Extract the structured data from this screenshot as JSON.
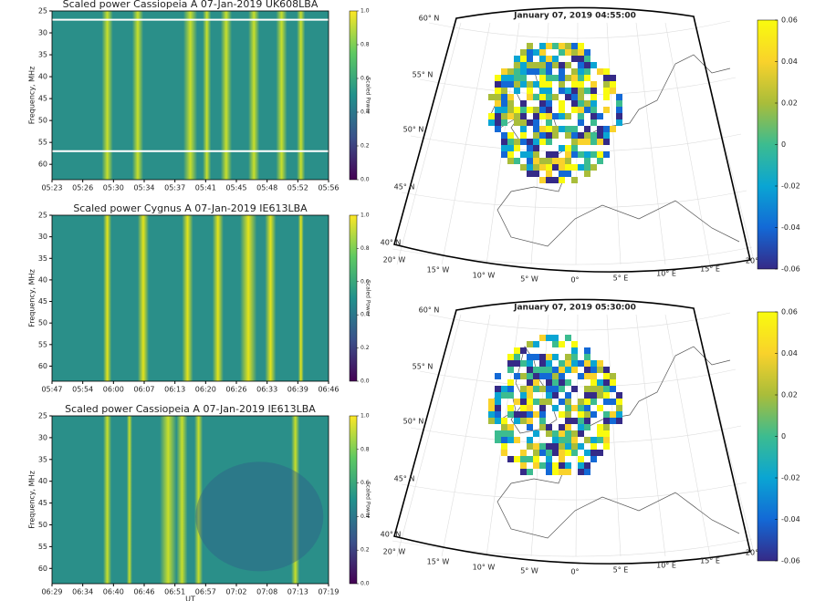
{
  "chart_data": [
    {
      "type": "spectrogram",
      "title": "Scaled power Cassiopeia A 07-Jan-2019 UK608LBA",
      "ylabel": "Frequency, MHz",
      "ylim": [
        25,
        63.5
      ],
      "yticks": [
        25,
        30,
        35,
        40,
        45,
        50,
        55,
        60
      ],
      "xticks": [
        "05:23",
        "05:26",
        "05:30",
        "05:34",
        "05:37",
        "05:41",
        "05:45",
        "05:48",
        "05:52",
        "05:56"
      ],
      "colorbar": {
        "label": "Scaled Power",
        "ticks": [
          {
            "value": 0,
            "label": "0.0"
          },
          {
            "value": 0.2,
            "label": "0.2"
          },
          {
            "value": 0.4,
            "label": "0.4"
          },
          {
            "value": 0.6,
            "label": "0.6"
          },
          {
            "value": 0.8,
            "label": "0.8"
          },
          {
            "value": 1,
            "label": "1.0"
          }
        ]
      }
    },
    {
      "type": "spectrogram",
      "title": "Scaled power Cygnus A 07-Jan-2019 IE613LBA",
      "ylabel": "Frequency, MHz",
      "ylim": [
        25,
        63.5
      ],
      "yticks": [
        25,
        30,
        35,
        40,
        45,
        50,
        55,
        60
      ],
      "xticks": [
        "05:47",
        "05:54",
        "06:00",
        "06:07",
        "06:13",
        "06:20",
        "06:26",
        "06:33",
        "06:39",
        "06:46"
      ],
      "colorbar": {
        "label": "Scaled Power",
        "ticks": [
          {
            "value": 0,
            "label": "0.0"
          },
          {
            "value": 0.2,
            "label": "0.2"
          },
          {
            "value": 0.4,
            "label": "0.4"
          },
          {
            "value": 0.6,
            "label": "0.6"
          },
          {
            "value": 0.8,
            "label": "0.8"
          },
          {
            "value": 1,
            "label": "1.0"
          }
        ]
      }
    },
    {
      "type": "spectrogram",
      "title": "Scaled power Cassiopeia A 07-Jan-2019 IE613LBA",
      "ylabel": "Frequency, MHz",
      "xlabel": "UT",
      "ylim": [
        25,
        63.5
      ],
      "yticks": [
        25,
        30,
        35,
        40,
        45,
        50,
        55,
        60
      ],
      "xticks": [
        "06:29",
        "06:34",
        "06:40",
        "06:46",
        "06:51",
        "06:57",
        "07:02",
        "07:08",
        "07:13",
        "07:19"
      ],
      "colorbar": {
        "label": "Scaled Power",
        "ticks": [
          {
            "value": 0,
            "label": "0.0"
          },
          {
            "value": 0.2,
            "label": "0.2"
          },
          {
            "value": 0.4,
            "label": "0.4"
          },
          {
            "value": 0.6,
            "label": "0.6"
          },
          {
            "value": 0.8,
            "label": "0.8"
          },
          {
            "value": 1,
            "label": "1.0"
          }
        ]
      }
    },
    {
      "type": "map",
      "title": "January 07, 2019 04:55:00",
      "lat_labels": [
        "60° N",
        "55° N",
        "50° N",
        "45° N",
        "40° N"
      ],
      "lon_labels": [
        "20° W",
        "15° W",
        "10° W",
        "5° W",
        "0°",
        "5° E",
        "10° E",
        "15° E",
        "20°"
      ],
      "colorbar": {
        "lim": [
          -0.06,
          0.06
        ],
        "ticks": [
          0.06,
          0.04,
          0.02,
          0,
          -0.02,
          -0.04,
          -0.06
        ]
      }
    },
    {
      "type": "map",
      "title": "January 07, 2019 05:30:00",
      "lat_labels": [
        "60° N",
        "55° N",
        "50° N",
        "45° N",
        "40° N"
      ],
      "lon_labels": [
        "20° W",
        "15° W",
        "10° W",
        "5° W",
        "0°",
        "5° E",
        "10° E",
        "15° E",
        "20°"
      ],
      "colorbar": {
        "lim": [
          -0.06,
          0.06
        ],
        "ticks": [
          0.06,
          0.04,
          0.02,
          0,
          -0.02,
          -0.04,
          -0.06
        ]
      }
    }
  ]
}
